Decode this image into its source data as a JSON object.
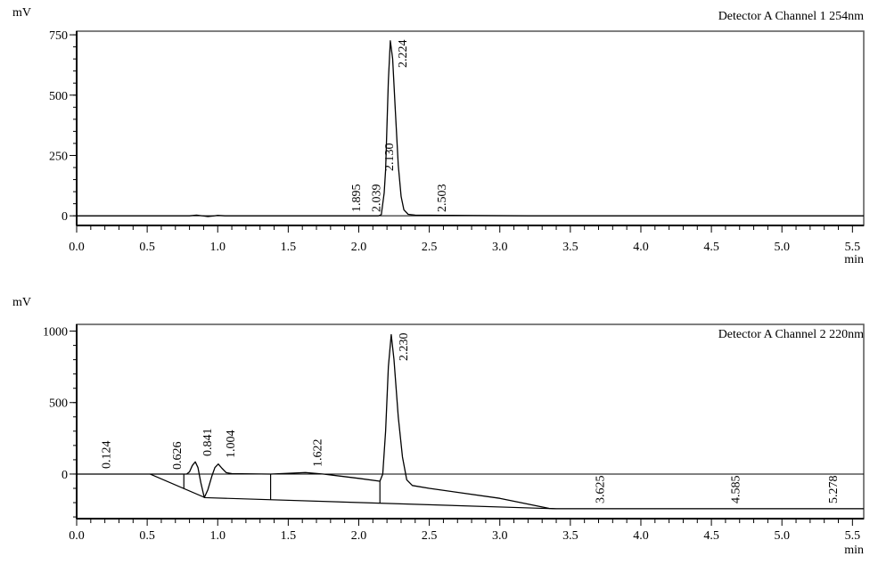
{
  "chart_data": [
    {
      "type": "line",
      "title": "Detector A Channel 1 254nm",
      "xlabel": "min",
      "ylabel": "mV",
      "xlim": [
        0.0,
        5.58
      ],
      "ylim": [
        -40,
        765
      ],
      "x_ticks": [
        "0.0",
        "0.5",
        "1.0",
        "1.5",
        "2.0",
        "2.5",
        "3.0",
        "3.5",
        "4.0",
        "4.5",
        "5.0",
        "5.5"
      ],
      "y_ticks": [
        "0",
        "250",
        "500",
        "750"
      ],
      "y_tick_values": [
        0,
        250,
        500,
        750
      ],
      "grid": false,
      "series": [
        {
          "x": [
            0.0,
            0.8,
            0.85,
            0.9,
            0.93,
            0.97,
            1.0,
            1.05,
            2.14,
            2.16,
            2.18,
            2.19,
            2.2,
            2.21,
            2.224,
            2.24,
            2.26,
            2.28,
            2.3,
            2.32,
            2.35,
            2.4,
            2.6,
            3.2,
            5.58
          ],
          "y": [
            0,
            0,
            3,
            -1,
            -3,
            -1,
            2,
            0,
            0,
            5,
            95,
            190,
            370,
            560,
            725,
            650,
            430,
            210,
            80,
            25,
            6,
            3,
            2,
            0,
            0
          ]
        }
      ],
      "peak_labels": [
        "1.895",
        "2.039",
        "2.130",
        "2.224",
        "2.503"
      ],
      "peak_rt": [
        1.895,
        2.039,
        2.13,
        2.224,
        2.503
      ]
    },
    {
      "type": "line",
      "title": "Detector A Channel 2 220nm",
      "xlabel": "min",
      "ylabel": "mV",
      "xlim": [
        0.0,
        5.58
      ],
      "ylim": [
        -312,
        1047
      ],
      "x_ticks": [
        "0.0",
        "0.5",
        "1.0",
        "1.5",
        "2.0",
        "2.5",
        "3.0",
        "3.5",
        "4.0",
        "4.5",
        "5.0",
        "5.5"
      ],
      "y_ticks": [
        "0",
        "500",
        "1000"
      ],
      "y_tick_values": [
        0,
        500,
        1000
      ],
      "grid": false,
      "series": [
        {
          "x": [
            0.0,
            0.52,
            0.78,
            0.8,
            0.82,
            0.841,
            0.86,
            0.88,
            0.905,
            0.93,
            0.96,
            0.98,
            1.004,
            1.03,
            1.06,
            1.1,
            1.375,
            1.5,
            1.622,
            1.75,
            2.0,
            2.15,
            2.17,
            2.19,
            2.21,
            2.23,
            2.25,
            2.28,
            2.31,
            2.34,
            2.38,
            2.5,
            3.0,
            3.35,
            3.4,
            5.58
          ],
          "y": [
            0,
            0,
            0,
            15,
            60,
            85,
            45,
            -60,
            -165,
            -110,
            -10,
            45,
            70,
            40,
            10,
            3,
            0,
            5,
            10,
            0,
            -30,
            -50,
            0,
            300,
            750,
            975,
            800,
            400,
            120,
            -40,
            -80,
            -100,
            -170,
            -240,
            -243,
            -243
          ]
        }
      ],
      "baseline": {
        "x": [
          0.52,
          0.91,
          3.4,
          5.58
        ],
        "y": [
          0,
          -165,
          -243,
          -243
        ]
      },
      "drop_lines": [
        {
          "x": 0.76,
          "y": [
            0,
            -100
          ]
        },
        {
          "x": 1.375,
          "y": [
            0,
            -180
          ]
        },
        {
          "x": 2.15,
          "y": [
            -50,
            -204
          ]
        }
      ],
      "peak_labels": [
        "0.124",
        "0.626",
        "0.841",
        "1.004",
        "1.622",
        "2.230",
        "3.625",
        "4.585",
        "5.278"
      ],
      "peak_rt": [
        0.124,
        0.626,
        0.841,
        1.004,
        1.622,
        2.23,
        3.625,
        4.585,
        5.278
      ]
    }
  ]
}
